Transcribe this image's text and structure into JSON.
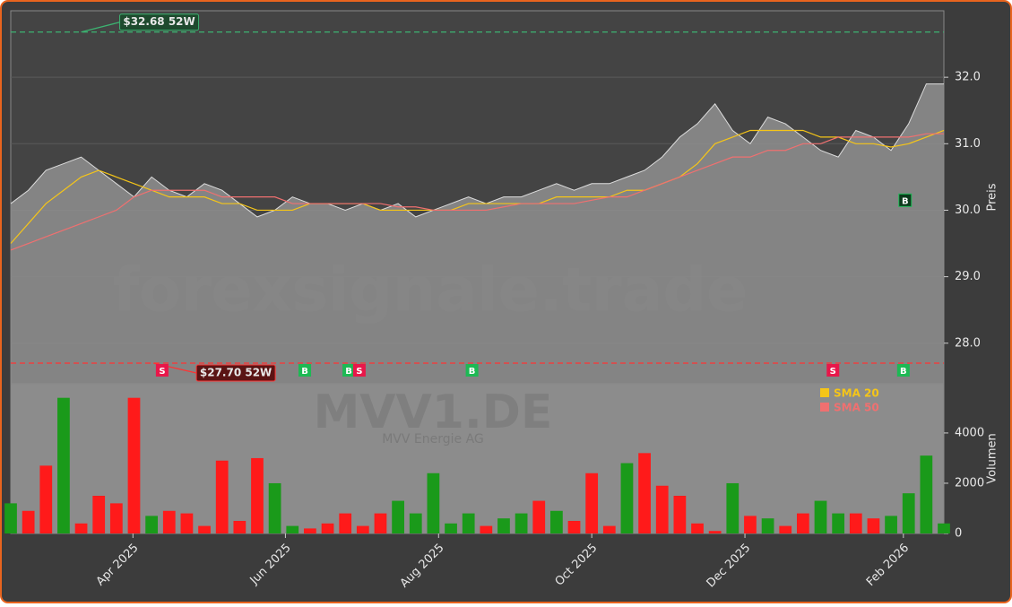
{
  "chart_data": [
    {
      "type": "area",
      "watermark": "forexsignale.trade",
      "ylabel": "Preis",
      "color": "#8c8c8c",
      "values": [
        30.1,
        30.3,
        30.6,
        30.7,
        30.8,
        30.6,
        30.4,
        30.2,
        30.5,
        30.3,
        30.2,
        30.4,
        30.3,
        30.1,
        29.9,
        30.0,
        30.2,
        30.1,
        30.1,
        30.0,
        30.1,
        30.0,
        30.1,
        29.9,
        30.0,
        30.1,
        30.2,
        30.1,
        30.2,
        30.2,
        30.3,
        30.4,
        30.3,
        30.4,
        30.4,
        30.5,
        30.6,
        30.8,
        31.1,
        31.3,
        31.6,
        31.2,
        31.0,
        31.4,
        31.3,
        31.1,
        30.9,
        30.8,
        31.2,
        31.1,
        30.9,
        31.3,
        31.9,
        31.9
      ],
      "series": [
        {
          "name": "SMA 20",
          "color": "#f5c518",
          "values": [
            29.5,
            29.8,
            30.1,
            30.3,
            30.5,
            30.6,
            30.5,
            30.4,
            30.3,
            30.2,
            30.2,
            30.2,
            30.1,
            30.1,
            30.0,
            30.0,
            30.0,
            30.1,
            30.1,
            30.1,
            30.1,
            30.0,
            30.0,
            30.0,
            30.0,
            30.0,
            30.1,
            30.1,
            30.1,
            30.1,
            30.1,
            30.2,
            30.2,
            30.2,
            30.2,
            30.3,
            30.3,
            30.4,
            30.5,
            30.7,
            31.0,
            31.1,
            31.2,
            31.2,
            31.2,
            31.2,
            31.1,
            31.1,
            31.0,
            31.0,
            30.95,
            31.0,
            31.1,
            31.2
          ]
        },
        {
          "name": "SMA 50",
          "color": "#f07070",
          "values": [
            29.4,
            29.5,
            29.6,
            29.7,
            29.8,
            29.9,
            30.0,
            30.2,
            30.3,
            30.3,
            30.3,
            30.3,
            30.2,
            30.2,
            30.2,
            30.2,
            30.1,
            30.1,
            30.1,
            30.1,
            30.1,
            30.1,
            30.05,
            30.05,
            30.0,
            30.0,
            30.0,
            30.0,
            30.05,
            30.1,
            30.1,
            30.1,
            30.1,
            30.15,
            30.2,
            30.2,
            30.3,
            30.4,
            30.5,
            30.6,
            30.7,
            30.8,
            30.8,
            30.9,
            30.9,
            31.0,
            31.0,
            31.1,
            31.1,
            31.1,
            31.1,
            31.1,
            31.15,
            31.15
          ]
        }
      ],
      "legend": "upper right",
      "annotations": [
        {
          "label": "$32.68 52W",
          "value": 32.68,
          "x": 4.0,
          "color": "#3cb371"
        },
        {
          "label": "$27.70 52W",
          "value": 27.7,
          "x": 8.1,
          "color": "#ff3333"
        }
      ],
      "signals": [
        {
          "label": "S",
          "x": 8.6
        },
        {
          "label": "B",
          "x": 16.7
        },
        {
          "label": "B",
          "x": 19.2
        },
        {
          "label": "S",
          "x": 19.8
        },
        {
          "label": "B",
          "x": 26.2
        },
        {
          "label": "S",
          "x": 46.7
        },
        {
          "label": "B",
          "x": 50.7
        },
        {
          "label": "B",
          "x": 50.8,
          "value": 30.15
        }
      ],
      "xlim": [
        0,
        53
      ],
      "ylim": [
        27.39,
        33.0
      ],
      "yticks": [
        {
          "value": 28,
          "label": "28.0"
        },
        {
          "value": 29,
          "label": "29.0"
        },
        {
          "value": 30,
          "label": "30.0"
        },
        {
          "value": 31,
          "label": "31.0"
        },
        {
          "value": 32,
          "label": "32.0"
        }
      ],
      "grid": true
    },
    {
      "type": "bar",
      "title": "MVV1.DE",
      "subtitle": "MVV Energie AG",
      "ylabel": "Volumen",
      "values": [
        1200,
        900,
        2700,
        5400,
        400,
        1500,
        1200,
        5400,
        700,
        900,
        800,
        300,
        2900,
        500,
        3000,
        2000,
        300,
        200,
        400,
        800,
        300,
        800,
        1300,
        800,
        2400,
        400,
        800,
        300,
        600,
        800,
        1300,
        900,
        500,
        2400,
        300,
        2800,
        3200,
        1900,
        1500,
        400,
        100,
        2000,
        700,
        600,
        300,
        800,
        1300,
        800,
        800,
        600,
        700,
        1600,
        3100,
        400
      ],
      "colors": [
        "#1a9a1a",
        "#ff1a1a",
        "#ff1a1a",
        "#1a9a1a",
        "#ff1a1a",
        "#ff1a1a",
        "#ff1a1a",
        "#ff1a1a",
        "#1a9a1a",
        "#ff1a1a",
        "#ff1a1a",
        "#ff1a1a",
        "#ff1a1a",
        "#ff1a1a",
        "#ff1a1a",
        "#1a9a1a",
        "#1a9a1a",
        "#ff1a1a",
        "#ff1a1a",
        "#ff1a1a",
        "#ff1a1a",
        "#ff1a1a",
        "#1a9a1a",
        "#1a9a1a",
        "#1a9a1a",
        "#1a9a1a",
        "#1a9a1a",
        "#ff1a1a",
        "#1a9a1a",
        "#1a9a1a",
        "#ff1a1a",
        "#1a9a1a",
        "#ff1a1a",
        "#ff1a1a",
        "#ff1a1a",
        "#1a9a1a",
        "#ff1a1a",
        "#ff1a1a",
        "#ff1a1a",
        "#ff1a1a",
        "#ff1a1a",
        "#1a9a1a",
        "#ff1a1a",
        "#1a9a1a",
        "#ff1a1a",
        "#ff1a1a",
        "#1a9a1a",
        "#1a9a1a",
        "#ff1a1a",
        "#ff1a1a",
        "#1a9a1a",
        "#1a9a1a",
        "#1a9a1a",
        "#1a9a1a"
      ],
      "xlim": [
        0,
        53
      ],
      "ylim": [
        0,
        5960
      ],
      "yticks": [
        0,
        2000,
        4000
      ],
      "xticks": [
        {
          "value": 6.94,
          "label": "Apr 2025"
        },
        {
          "value": 15.6,
          "label": "Jun 2025"
        },
        {
          "value": 24.3,
          "label": "Aug 2025"
        },
        {
          "value": 33.0,
          "label": "Oct 2025"
        },
        {
          "value": 41.7,
          "label": "Dec 2025"
        },
        {
          "value": 50.7,
          "label": "Feb 2026"
        }
      ]
    }
  ]
}
